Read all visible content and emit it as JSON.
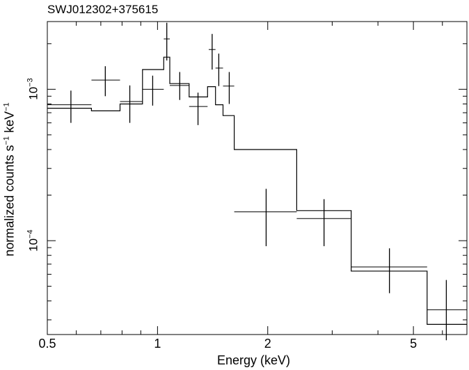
{
  "chart_data": {
    "type": "scatter",
    "title": "SWJ012302+375615",
    "xlabel": "Energy (keV)",
    "ylabel": {
      "text": "normalized counts s",
      "exp1": "−1",
      "mid": " keV",
      "exp2": "−1"
    },
    "x_scale": "log",
    "y_scale": "log",
    "xlim": [
      0.5,
      7.0
    ],
    "ylim": [
      2.4e-05,
      0.0028
    ],
    "x_ticks": [
      {
        "value": 0.5,
        "label": "0.5"
      },
      {
        "value": 1,
        "label": "1"
      },
      {
        "value": 2,
        "label": "2"
      },
      {
        "value": 5,
        "label": "5"
      }
    ],
    "y_ticks": [
      {
        "value": 0.0001,
        "base": "10",
        "exp": "−4"
      },
      {
        "value": 0.001,
        "base": "10",
        "exp": "−3"
      }
    ],
    "series": [
      {
        "kind": "data",
        "points": [
          {
            "x": 0.58,
            "xlo": 0.5,
            "xhi": 0.66,
            "y": 0.00079,
            "ylo": 0.0006,
            "yhi": 0.00098
          },
          {
            "x": 0.72,
            "xlo": 0.66,
            "xhi": 0.79,
            "y": 0.00115,
            "ylo": 0.0009,
            "yhi": 0.00142
          },
          {
            "x": 0.84,
            "xlo": 0.79,
            "xhi": 0.91,
            "y": 0.00083,
            "ylo": 0.0006,
            "yhi": 0.00106
          },
          {
            "x": 0.97,
            "xlo": 0.91,
            "xhi": 1.04,
            "y": 0.001,
            "ylo": 0.00078,
            "yhi": 0.00123
          },
          {
            "x": 1.06,
            "xlo": 1.04,
            "xhi": 1.08,
            "y": 0.00215,
            "ylo": 0.00155,
            "yhi": 0.00275
          },
          {
            "x": 1.15,
            "xlo": 1.08,
            "xhi": 1.22,
            "y": 0.00106,
            "ylo": 0.00085,
            "yhi": 0.0013
          },
          {
            "x": 1.29,
            "xlo": 1.22,
            "xhi": 1.37,
            "y": 0.00077,
            "ylo": 0.00058,
            "yhi": 0.00095
          },
          {
            "x": 1.41,
            "xlo": 1.38,
            "xhi": 1.44,
            "y": 0.00183,
            "ylo": 0.00135,
            "yhi": 0.00232
          },
          {
            "x": 1.47,
            "xlo": 1.44,
            "xhi": 1.51,
            "y": 0.00138,
            "ylo": 0.00105,
            "yhi": 0.00172
          },
          {
            "x": 1.57,
            "xlo": 1.51,
            "xhi": 1.62,
            "y": 0.00105,
            "ylo": 0.0008,
            "yhi": 0.0013
          },
          {
            "x": 1.98,
            "xlo": 1.62,
            "xhi": 2.4,
            "y": 0.000155,
            "ylo": 9.2e-05,
            "yhi": 0.00022
          },
          {
            "x": 2.85,
            "xlo": 2.4,
            "xhi": 3.38,
            "y": 0.00014,
            "ylo": 9.2e-05,
            "yhi": 0.000188
          },
          {
            "x": 4.3,
            "xlo": 3.38,
            "xhi": 5.45,
            "y": 6.7e-05,
            "ylo": 4.5e-05,
            "yhi": 8.9e-05
          },
          {
            "x": 6.15,
            "xlo": 5.45,
            "xhi": 7.0,
            "y": 3.5e-05,
            "ylo": 2.2e-05,
            "yhi": 5.5e-05
          }
        ]
      },
      {
        "kind": "model",
        "steps": [
          {
            "xlo": 0.5,
            "xhi": 0.66,
            "y": 0.00075
          },
          {
            "xlo": 0.66,
            "xhi": 0.79,
            "y": 0.00072
          },
          {
            "xlo": 0.79,
            "xhi": 0.91,
            "y": 0.0008
          },
          {
            "xlo": 0.91,
            "xhi": 1.04,
            "y": 0.00135
          },
          {
            "xlo": 1.04,
            "xhi": 1.08,
            "y": 0.00163
          },
          {
            "xlo": 1.08,
            "xhi": 1.22,
            "y": 0.00109
          },
          {
            "xlo": 1.22,
            "xhi": 1.37,
            "y": 0.00089
          },
          {
            "xlo": 1.37,
            "xhi": 1.44,
            "y": 0.00104
          },
          {
            "xlo": 1.44,
            "xhi": 1.51,
            "y": 0.00079
          },
          {
            "xlo": 1.51,
            "xhi": 1.62,
            "y": 0.00067
          },
          {
            "xlo": 1.62,
            "xhi": 2.4,
            "y": 0.0004
          },
          {
            "xlo": 2.4,
            "xhi": 3.38,
            "y": 0.000158
          },
          {
            "xlo": 3.38,
            "xhi": 5.45,
            "y": 6.3e-05
          },
          {
            "xlo": 5.45,
            "xhi": 7.0,
            "y": 2.8e-05
          }
        ]
      }
    ]
  }
}
